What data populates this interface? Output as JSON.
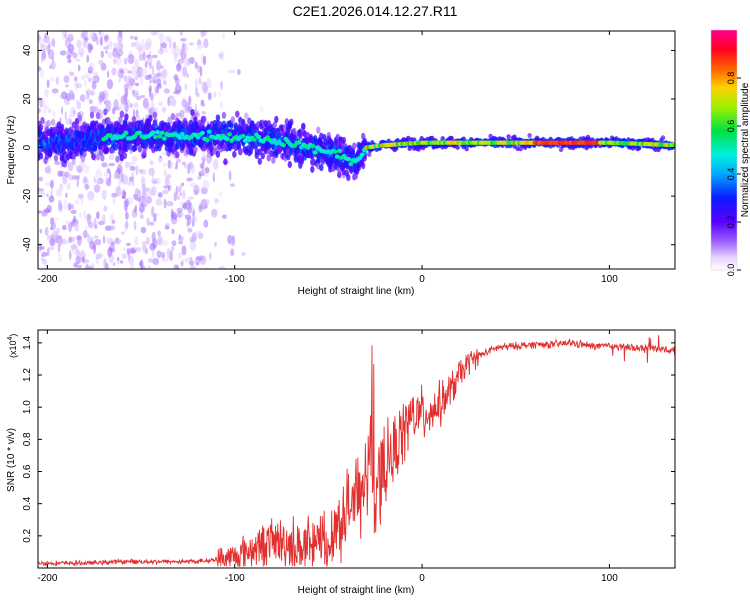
{
  "title": "C2E1.2026.014.12.27.R11",
  "colors": {
    "snr_line": "#e03030",
    "frame": "#000000"
  },
  "chart_data": [
    {
      "type": "heatmap",
      "xlabel": "Height of straight line (km)",
      "ylabel": "Frequency (Hz)",
      "xlim": [
        -205,
        135
      ],
      "ylim": [
        -50,
        48
      ],
      "xticks": [
        -200,
        -100,
        0,
        100
      ],
      "xtick_labels": [
        "-200",
        "-100",
        "0",
        "100"
      ],
      "yticks": [
        -40,
        -20,
        0,
        20,
        40
      ],
      "ytick_labels": [
        "-40",
        "-20",
        "0",
        "20",
        "40"
      ],
      "colorbar": {
        "label": "Normalized spectral amplitude",
        "range": [
          0,
          1
        ],
        "ticks": [
          0,
          0.2,
          0.4,
          0.6,
          0.8
        ],
        "tick_labels": [
          "0.0",
          "0.2",
          "0.4",
          "0.6",
          "0.8"
        ],
        "colormap": "rainbow (white-violet-blue-cyan-green-yellow-red-magenta)"
      },
      "ridge": {
        "x": [
          -200,
          -170,
          -150,
          -130,
          -110,
          -90,
          -70,
          -50,
          -40,
          -35,
          -30,
          -20,
          0,
          20,
          60,
          100,
          135
        ],
        "center_freq": [
          2,
          4,
          5,
          5,
          5,
          4,
          2,
          -2,
          -4,
          -6,
          0,
          1,
          2,
          2,
          2,
          2,
          1
        ]
      }
    },
    {
      "type": "line",
      "xlabel": "Height of straight line (km)",
      "ylabel": "SNR (10 * v/v)",
      "y_multiplier_label": "(x10",
      "y_multiplier_exp": "4",
      "y_multiplier_close": ")",
      "xlim": [
        -205,
        135
      ],
      "ylim": [
        0,
        1.48
      ],
      "xticks": [
        -200,
        -100,
        0,
        100
      ],
      "xtick_labels": [
        "-200",
        "-100",
        "0",
        "100"
      ],
      "yticks": [
        0.2,
        0.4,
        0.6,
        0.8,
        1.0,
        1.2,
        1.4
      ],
      "ytick_labels": [
        "0.2",
        "0.4",
        "0.6",
        "0.8",
        "1.0",
        "1.2",
        "1.4"
      ],
      "series": [
        {
          "name": "SNR",
          "envelope_x": [
            -205,
            -180,
            -160,
            -140,
            -120,
            -110,
            -100,
            -90,
            -80,
            -70,
            -60,
            -50,
            -45,
            -40,
            -35,
            -30,
            -27,
            -25,
            -22,
            -20,
            -15,
            -10,
            -5,
            0,
            5,
            10,
            15,
            20,
            25,
            30,
            40,
            50,
            60,
            70,
            80,
            90,
            100,
            110,
            120,
            135
          ],
          "envelope_y": [
            0.03,
            0.03,
            0.04,
            0.04,
            0.04,
            0.05,
            0.07,
            0.12,
            0.17,
            0.15,
            0.12,
            0.18,
            0.28,
            0.35,
            0.45,
            0.55,
            0.7,
            0.5,
            0.6,
            0.62,
            0.72,
            0.85,
            0.95,
            0.95,
            0.98,
            1.02,
            1.1,
            1.2,
            1.28,
            1.32,
            1.37,
            1.38,
            1.39,
            1.39,
            1.4,
            1.38,
            1.38,
            1.37,
            1.37,
            1.35
          ]
        }
      ]
    }
  ]
}
